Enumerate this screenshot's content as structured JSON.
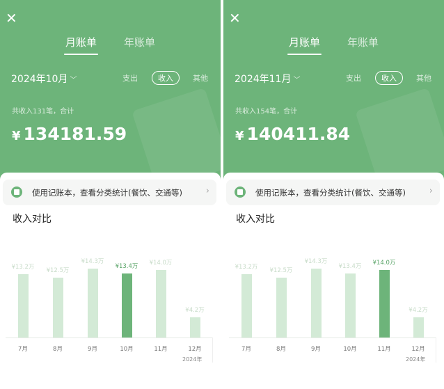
{
  "colors": {
    "accent": "#6db47a",
    "bar": "#d3ead6"
  },
  "panels": [
    {
      "close_icon": "close-icon",
      "tabs": [
        "月账单",
        "年账单"
      ],
      "active_tab": 0,
      "month": "2024年10月",
      "types": [
        "支出",
        "收入",
        "其他"
      ],
      "selected_type": 1,
      "summary": "共收入131笔，合计",
      "currency": "¥",
      "amount": "134181.59",
      "banner": "使用记账本，查看分类统计(餐饮、交通等)",
      "chart_title": "收入对比",
      "chart_data": {
        "type": "bar",
        "categories": [
          "7月",
          "8月",
          "9月",
          "10月",
          "11月",
          "12月"
        ],
        "values": [
          13.2,
          12.5,
          14.3,
          13.4,
          14.0,
          4.2
        ],
        "labels": [
          "¥13.2万",
          "¥12.5万",
          "¥14.3万",
          "¥13.4万",
          "¥14.0万",
          "¥4.2万"
        ],
        "highlight": 3,
        "year_label": "2024年",
        "unit": "万"
      }
    },
    {
      "close_icon": "close-icon",
      "tabs": [
        "月账单",
        "年账单"
      ],
      "active_tab": 0,
      "month": "2024年11月",
      "types": [
        "支出",
        "收入",
        "其他"
      ],
      "selected_type": 1,
      "summary": "共收入154笔，合计",
      "currency": "¥",
      "amount": "140411.84",
      "banner": "使用记账本，查看分类统计(餐饮、交通等)",
      "chart_title": "收入对比",
      "chart_data": {
        "type": "bar",
        "categories": [
          "7月",
          "8月",
          "9月",
          "10月",
          "11月",
          "12月"
        ],
        "values": [
          13.2,
          12.5,
          14.3,
          13.4,
          14.0,
          4.2
        ],
        "labels": [
          "¥13.2万",
          "¥12.5万",
          "¥14.3万",
          "¥13.4万",
          "¥14.0万",
          "¥4.2万"
        ],
        "highlight": 4,
        "year_label": "2024年",
        "unit": "万"
      }
    }
  ]
}
